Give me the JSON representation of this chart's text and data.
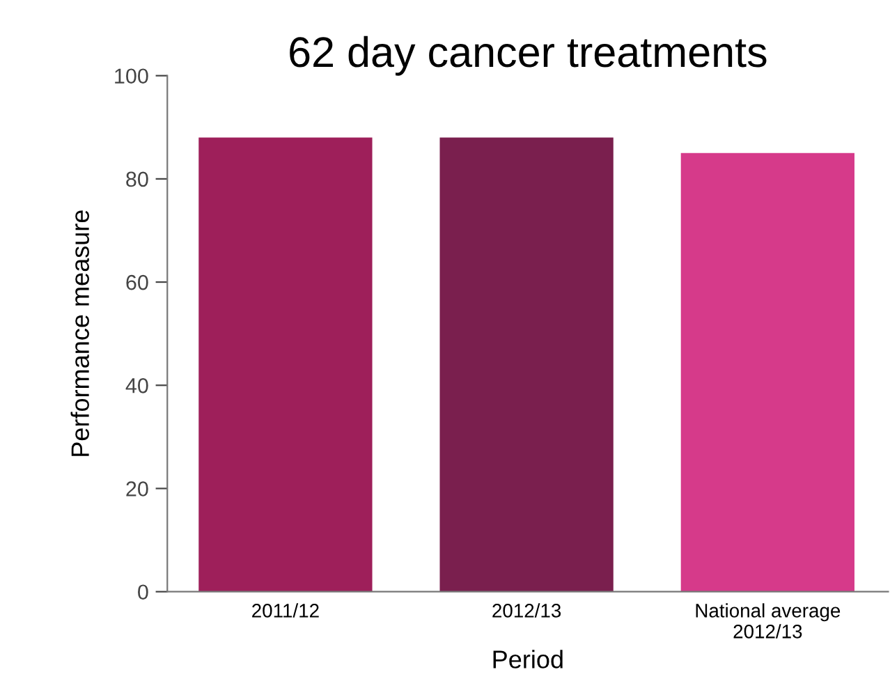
{
  "chart_data": {
    "type": "bar",
    "title": "62 day cancer treatments",
    "xlabel": "Period",
    "ylabel": "Performance measure",
    "categories": [
      "2011/12",
      "2012/13",
      "National average\n2012/13"
    ],
    "values": [
      88,
      88,
      85
    ],
    "colors": [
      "#9e1f5a",
      "#7a1f4e",
      "#d63a8a"
    ],
    "ylim": [
      0,
      100
    ],
    "yticks": [
      0,
      20,
      40,
      60,
      80,
      100
    ],
    "grid": false,
    "legend": false
  }
}
